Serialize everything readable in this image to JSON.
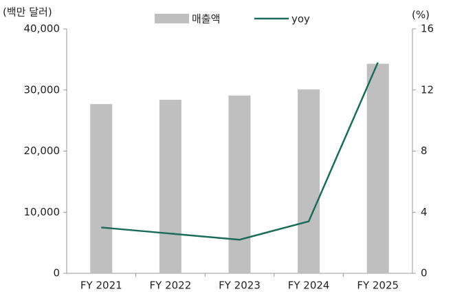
{
  "chart_data": {
    "type": "bar",
    "y_label": "(백만 달러)",
    "y2_label": "(%)",
    "categories": [
      "FY 2021",
      "FY 2022",
      "FY 2023",
      "FY 2024",
      "FY 2025"
    ],
    "series": [
      {
        "name": "매출액",
        "type": "bar",
        "color": "#bfbfbf",
        "values": [
          27700,
          28400,
          29100,
          30100,
          34300
        ]
      },
      {
        "name": "yoy",
        "type": "line",
        "axis": "y2",
        "color": "#1a6b5a",
        "values": [
          3.0,
          2.6,
          2.2,
          3.4,
          13.8
        ]
      }
    ],
    "ylim": [
      0,
      40000
    ],
    "yticks": [
      0,
      {
        "value": 10000,
        "label": "10,000"
      },
      {
        "value": 20000,
        "label": "20,000"
      },
      {
        "value": 30000,
        "label": "30,000"
      },
      {
        "value": 40000,
        "label": "40,000"
      }
    ],
    "y2lim": [
      0,
      16
    ],
    "y2ticks": [
      0,
      4,
      8,
      12,
      16
    ],
    "grid": false,
    "legend": "top"
  }
}
